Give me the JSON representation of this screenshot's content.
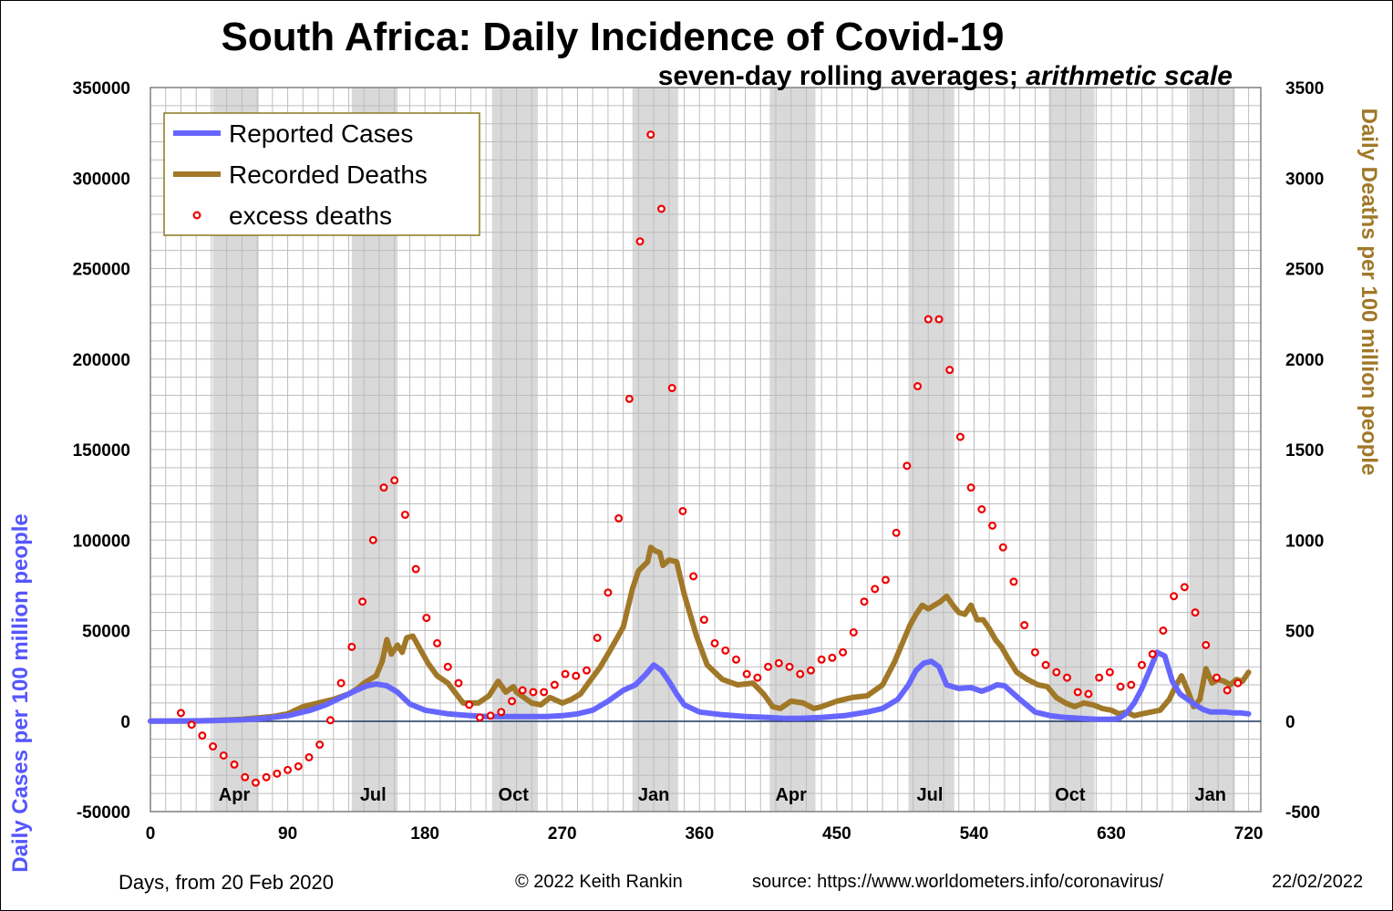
{
  "chart_data": {
    "type": "line",
    "title": "South Africa: Daily Incidence of Covid-19",
    "subtitle_plain": "seven-day rolling averages; ",
    "subtitle_italic": "arithmetic scale",
    "xlabel": "Days,  from 20 Feb 2020",
    "ylabel_left": "Daily Cases per 100 million people",
    "ylabel_right": "Daily Deaths per 100 million people",
    "xlim": [
      0,
      728
    ],
    "ylim_left": [
      -50000,
      350000
    ],
    "ylim_right": [
      -500,
      3500
    ],
    "x_ticks": [
      0,
      90,
      180,
      270,
      360,
      450,
      540,
      630,
      720
    ],
    "y_ticks_left": [
      -50000,
      0,
      50000,
      100000,
      150000,
      200000,
      250000,
      300000,
      350000
    ],
    "y_ticks_right": [
      -500,
      0,
      500,
      1000,
      1500,
      2000,
      2500,
      3000,
      3500
    ],
    "grid": true,
    "legend": "top-left",
    "month_labels": [
      {
        "label": "Apr",
        "x": 55
      },
      {
        "label": "Jul",
        "x": 146
      },
      {
        "label": "Oct",
        "x": 238
      },
      {
        "label": "Jan",
        "x": 330
      },
      {
        "label": "Apr",
        "x": 420
      },
      {
        "label": "Jul",
        "x": 511
      },
      {
        "label": "Oct",
        "x": 603
      },
      {
        "label": "Jan",
        "x": 695
      }
    ],
    "shaded_months": [
      [
        41,
        71
      ],
      [
        132,
        162
      ],
      [
        224,
        254
      ],
      [
        316,
        346
      ],
      [
        406,
        436
      ],
      [
        497,
        527
      ],
      [
        589,
        619
      ],
      [
        681,
        711
      ]
    ],
    "series": [
      {
        "name": "Reported Cases",
        "axis": "left",
        "color": "#6666FF",
        "x": [
          0,
          20,
          40,
          60,
          75,
          90,
          105,
          115,
          125,
          135,
          142,
          148,
          155,
          162,
          170,
          180,
          195,
          210,
          220,
          230,
          240,
          250,
          260,
          270,
          280,
          290,
          300,
          310,
          318,
          325,
          330,
          335,
          340,
          345,
          350,
          360,
          375,
          390,
          405,
          415,
          425,
          440,
          455,
          470,
          480,
          490,
          497,
          502,
          507,
          512,
          517,
          522,
          530,
          538,
          545,
          550,
          555,
          560,
          570,
          580,
          590,
          600,
          610,
          620,
          630,
          635,
          640,
          645,
          650,
          655,
          660,
          665,
          670,
          675,
          680,
          685,
          690,
          695,
          700,
          705,
          710,
          715,
          720
        ],
        "y": [
          0,
          100,
          300,
          700,
          1500,
          3000,
          6000,
          9000,
          13000,
          17000,
          19500,
          20500,
          19500,
          16000,
          9500,
          6000,
          4000,
          3000,
          2500,
          2500,
          2500,
          2500,
          2500,
          3000,
          4000,
          6000,
          11000,
          17000,
          20000,
          26000,
          31000,
          28000,
          22000,
          15000,
          9000,
          5000,
          3500,
          2500,
          2000,
          1500,
          1500,
          2000,
          3000,
          5000,
          7000,
          12000,
          20000,
          28000,
          32000,
          33000,
          30000,
          20000,
          18000,
          18500,
          16500,
          18000,
          20000,
          19500,
          12000,
          5000,
          3000,
          2000,
          1500,
          1000,
          1000,
          1500,
          4500,
          10000,
          18000,
          28000,
          38000,
          36000,
          22000,
          15000,
          12000,
          9000,
          6500,
          5000,
          5000,
          5000,
          4500,
          4500,
          4000
        ]
      },
      {
        "name": "Recorded Deaths",
        "axis": "right",
        "color": "#A07828",
        "x": [
          0,
          30,
          60,
          80,
          90,
          100,
          110,
          120,
          130,
          136,
          140,
          148,
          152,
          155,
          158,
          162,
          165,
          168,
          172,
          178,
          182,
          188,
          195,
          205,
          215,
          222,
          228,
          233,
          238,
          240,
          245,
          250,
          256,
          262,
          270,
          276,
          282,
          288,
          295,
          302,
          310,
          316,
          320,
          326,
          328,
          331,
          334,
          336,
          340,
          345,
          350,
          358,
          365,
          375,
          385,
          395,
          402,
          408,
          413,
          420,
          428,
          435,
          440,
          450,
          460,
          470,
          480,
          488,
          494,
          498,
          502,
          506,
          510,
          514,
          518,
          522,
          527,
          530,
          534,
          538,
          542,
          546,
          550,
          554,
          558,
          562,
          568,
          575,
          582,
          588,
          594,
          600,
          606,
          612,
          618,
          624,
          630,
          635,
          640,
          645,
          650,
          656,
          662,
          668,
          672,
          676,
          680,
          684,
          688,
          692,
          696,
          700,
          704,
          708,
          712,
          716,
          720
        ],
        "y": [
          0,
          0,
          10,
          25,
          40,
          80,
          100,
          120,
          150,
          180,
          210,
          250,
          330,
          450,
          370,
          420,
          380,
          460,
          470,
          380,
          320,
          250,
          210,
          100,
          100,
          140,
          220,
          160,
          190,
          160,
          130,
          100,
          90,
          130,
          100,
          120,
          150,
          220,
          300,
          400,
          520,
          730,
          830,
          880,
          960,
          940,
          930,
          860,
          890,
          880,
          700,
          470,
          310,
          230,
          200,
          210,
          150,
          80,
          70,
          110,
          100,
          70,
          80,
          110,
          130,
          140,
          200,
          330,
          450,
          530,
          590,
          640,
          620,
          640,
          660,
          690,
          630,
          600,
          590,
          640,
          560,
          560,
          510,
          450,
          410,
          350,
          270,
          230,
          200,
          190,
          130,
          100,
          80,
          100,
          90,
          70,
          60,
          40,
          50,
          30,
          40,
          50,
          60,
          120,
          190,
          250,
          170,
          80,
          120,
          290,
          210,
          230,
          220,
          200,
          230,
          220,
          270
        ]
      },
      {
        "name": "excess deaths",
        "axis": "right",
        "color": "#EE0000",
        "markers_only": true,
        "x": [
          20,
          27,
          34,
          41,
          48,
          55,
          62,
          69,
          76,
          83,
          90,
          97,
          104,
          111,
          118,
          125,
          132,
          139,
          146,
          153,
          160,
          167,
          174,
          181,
          188,
          195,
          202,
          209,
          216,
          223,
          230,
          237,
          244,
          251,
          258,
          265,
          272,
          279,
          286,
          293,
          300,
          307,
          314,
          321,
          328,
          335,
          342,
          349,
          356,
          363,
          370,
          377,
          384,
          391,
          398,
          405,
          412,
          419,
          426,
          433,
          440,
          447,
          454,
          461,
          468,
          475,
          482,
          489,
          496,
          503,
          510,
          517,
          524,
          531,
          538,
          545,
          552,
          559,
          566,
          573,
          580,
          587,
          594,
          601,
          608,
          615,
          622,
          629,
          636,
          643,
          650,
          657,
          664,
          671,
          678,
          685,
          692,
          699,
          706,
          713
        ],
        "y": [
          45,
          -20,
          -80,
          -140,
          -190,
          -240,
          -310,
          -340,
          -310,
          -290,
          -270,
          -250,
          -200,
          -130,
          5,
          210,
          410,
          660,
          1000,
          1290,
          1330,
          1140,
          840,
          570,
          430,
          300,
          210,
          90,
          20,
          30,
          50,
          110,
          170,
          160,
          160,
          200,
          260,
          250,
          280,
          460,
          710,
          1120,
          1780,
          2650,
          3240,
          2830,
          1840,
          1160,
          800,
          560,
          430,
          390,
          340,
          260,
          240,
          300,
          320,
          300,
          260,
          280,
          340,
          350,
          380,
          490,
          660,
          730,
          780,
          1040,
          1410,
          1850,
          2220,
          2220,
          1940,
          1570,
          1290,
          1170,
          1080,
          960,
          770,
          530,
          380,
          310,
          270,
          240,
          160,
          150,
          240,
          270,
          190,
          200,
          310,
          370,
          500,
          690,
          740,
          600,
          420,
          240,
          170,
          210
        ]
      }
    ]
  },
  "footer": {
    "copyright": "© 2022  Keith Rankin",
    "source": "source: https://www.worldometers.info/coronavirus/",
    "date": "22/02/2022"
  }
}
